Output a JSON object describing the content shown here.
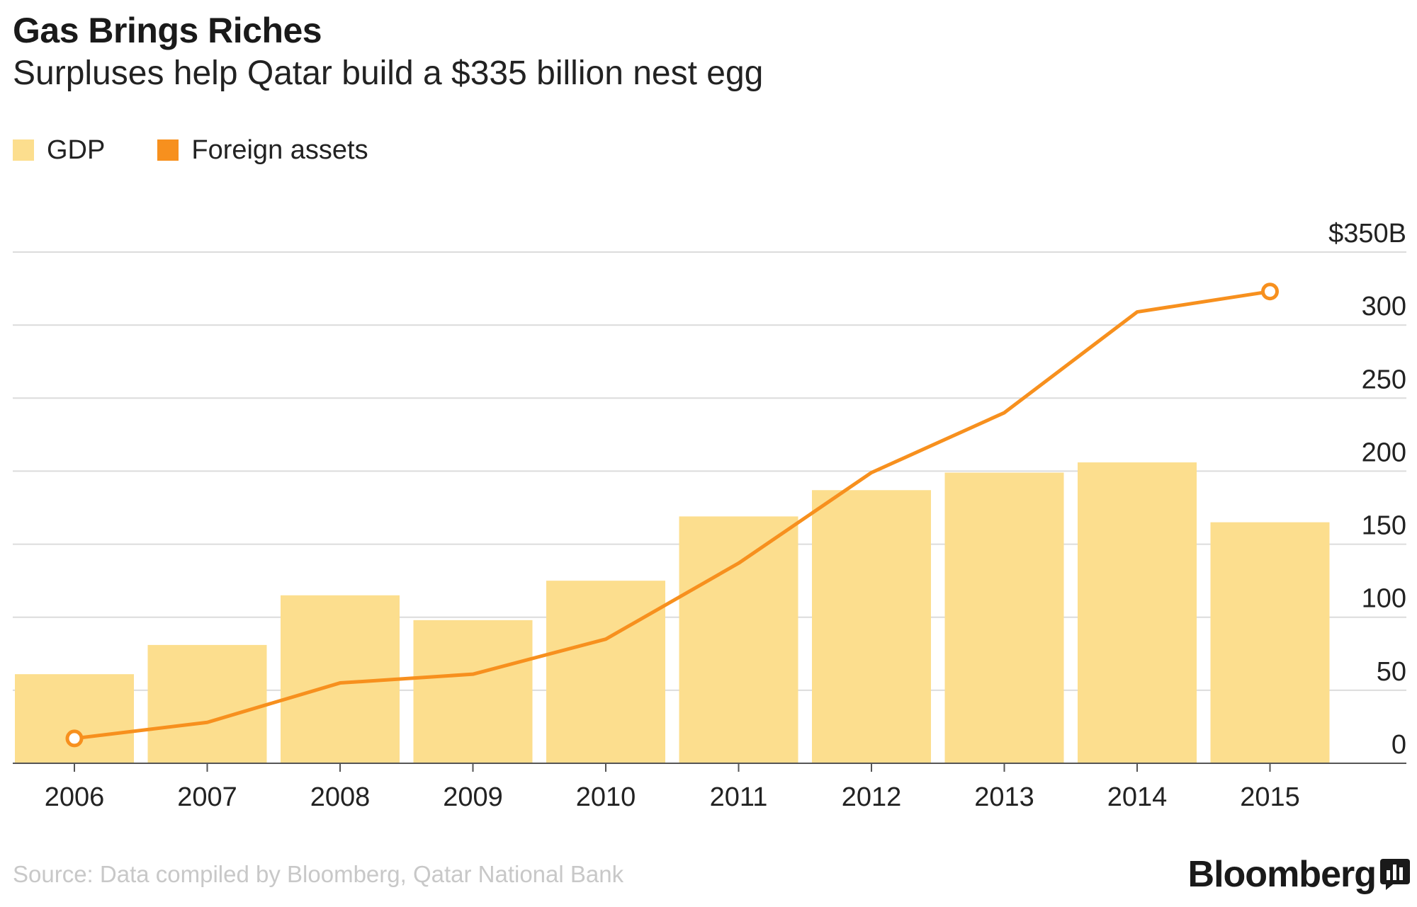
{
  "title": "Gas Brings Riches",
  "subtitle": "Surpluses help Qatar build a $335 billion nest egg",
  "legend": [
    {
      "label": "GDP",
      "color": "#fcde8e"
    },
    {
      "label": "Foreign assets",
      "color": "#f7901e"
    }
  ],
  "source": "Source: Data compiled by Bloomberg, Qatar National Bank",
  "brand": "Bloomberg",
  "colors": {
    "bar": "#fcde8e",
    "line": "#f7901e",
    "grid": "#dcdcdc",
    "axis": "#555555"
  },
  "chart_data": {
    "type": "bar",
    "categories": [
      "2006",
      "2007",
      "2008",
      "2009",
      "2010",
      "2011",
      "2012",
      "2013",
      "2014",
      "2015"
    ],
    "series": [
      {
        "name": "GDP",
        "type": "bar",
        "values": [
          61,
          81,
          115,
          98,
          125,
          169,
          187,
          199,
          206,
          165
        ]
      },
      {
        "name": "Foreign assets",
        "type": "line",
        "values": [
          17,
          28,
          55,
          61,
          85,
          137,
          199,
          240,
          309,
          323
        ],
        "endpoint_markers": true
      }
    ],
    "ylim": [
      0,
      350
    ],
    "yticks": [
      0,
      50,
      100,
      150,
      200,
      250,
      300,
      350
    ],
    "ytick_labels": [
      "0",
      "50",
      "100",
      "150",
      "200",
      "250",
      "300",
      "$350B"
    ],
    "y_axis_position": "right",
    "grid": true,
    "legend_position": "top-left"
  }
}
